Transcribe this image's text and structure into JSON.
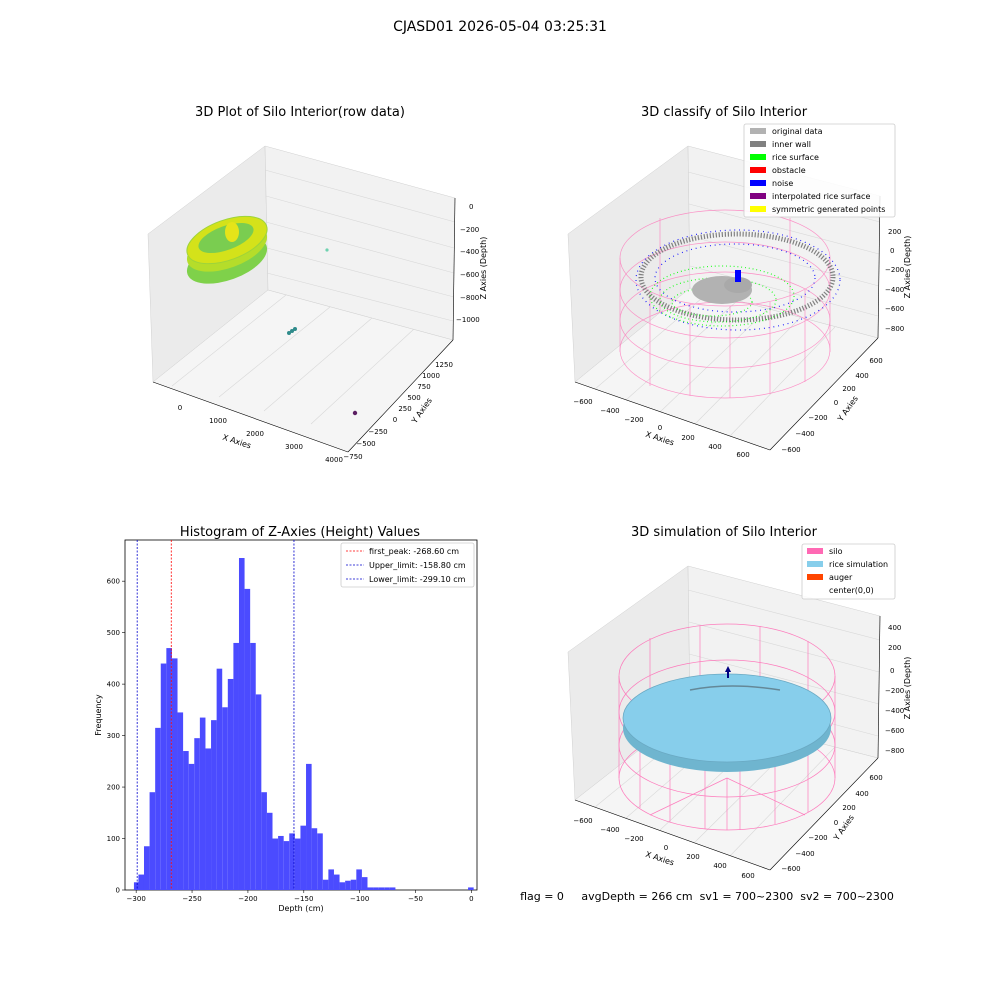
{
  "figure": {
    "suptitle": "CJASD01 2026-05-04 03:25:31",
    "status_text": "flag = 0     avgDepth = 266 cm  sv1 = 700~2300  sv2 = 700~2300"
  },
  "colors": {
    "pane": "#f2f2f2",
    "grid": "#d8d8d8",
    "hist_bar": "#4b4bff",
    "first_peak_line": "#ff0000",
    "limit_line": "#0000cc",
    "original_data": "#b2b2b2",
    "inner_wall": "#808080",
    "rice_surface": "#00ff00",
    "obstacle": "#ff0000",
    "noise": "#0000ff",
    "interpolated_rice_surface": "#800080",
    "symmetric_points": "#ffff00",
    "silo": "#ff69b4",
    "rice_simulation": "#87ceeb",
    "auger": "#ff4500"
  },
  "panels": {
    "raw": {
      "title": "3D Plot of Silo Interior(row data)",
      "xlabel": "X Axies",
      "ylabel": "Y Axies",
      "zlabel": "Z Axies (Depth)",
      "x_ticks": [
        "0",
        "1000",
        "2000",
        "3000",
        "4000"
      ],
      "y_ticks": [
        "1250",
        "1000",
        "750",
        "500",
        "250",
        "0",
        "−250",
        "−500",
        "−750"
      ],
      "z_ticks": [
        "0",
        "−200",
        "−400",
        "−600",
        "−800",
        "−1000"
      ]
    },
    "classify": {
      "title": "3D classify of Silo Interior",
      "xlabel": "X Axies",
      "ylabel": "Y Axies",
      "zlabel": "Z Axies (Depth)",
      "x_ticks": [
        "−600",
        "−400",
        "−200",
        "0",
        "200",
        "400",
        "600"
      ],
      "y_ticks": [
        "600",
        "400",
        "200",
        "0",
        "−200",
        "−400",
        "−600"
      ],
      "z_ticks": [
        "200",
        "0",
        "−200",
        "−400",
        "−600",
        "−800"
      ],
      "legend": [
        {
          "label": "original data",
          "color": "#b2b2b2"
        },
        {
          "label": "inner wall",
          "color": "#808080"
        },
        {
          "label": "rice surface",
          "color": "#00ff00"
        },
        {
          "label": "obstacle",
          "color": "#ff0000"
        },
        {
          "label": "noise",
          "color": "#0000ff"
        },
        {
          "label": "interpolated rice surface",
          "color": "#800080"
        },
        {
          "label": "symmetric generated points",
          "color": "#ffff00"
        }
      ]
    },
    "simulation": {
      "title": "3D simulation of Silo Interior",
      "xlabel": "X Axies",
      "ylabel": "Y Axies",
      "zlabel": "Z Axies (Depth)",
      "x_ticks": [
        "−600",
        "−400",
        "−200",
        "0",
        "200",
        "400",
        "600"
      ],
      "y_ticks": [
        "600",
        "400",
        "200",
        "0",
        "−200",
        "−400",
        "−600"
      ],
      "z_ticks": [
        "400",
        "200",
        "0",
        "−200",
        "−400",
        "−600",
        "−800"
      ],
      "legend": [
        {
          "label": "silo",
          "color": "#ff69b4"
        },
        {
          "label": "rice simulation",
          "color": "#87ceeb"
        },
        {
          "label": "auger",
          "color": "#ff4500"
        },
        {
          "label": "center(0,0)",
          "color": "#ffffff"
        }
      ]
    }
  },
  "chart_data": {
    "type": "bar",
    "title": "Histogram of Z-Axies (Height) Values",
    "xlabel": "Depth (cm)",
    "ylabel": "Frequency",
    "xlim": [
      -310,
      5
    ],
    "ylim": [
      0,
      680
    ],
    "x_ticks": [
      -300,
      -250,
      -200,
      -150,
      -100,
      -50,
      0
    ],
    "y_ticks": [
      0,
      100,
      200,
      300,
      400,
      500,
      600
    ],
    "bin_width": 5,
    "bins": [
      {
        "x": -302,
        "y": 15
      },
      {
        "x": -298,
        "y": 30
      },
      {
        "x": -293,
        "y": 85
      },
      {
        "x": -288,
        "y": 190
      },
      {
        "x": -283,
        "y": 315
      },
      {
        "x": -278,
        "y": 440
      },
      {
        "x": -273,
        "y": 470
      },
      {
        "x": -268,
        "y": 450
      },
      {
        "x": -263,
        "y": 345
      },
      {
        "x": -258,
        "y": 270
      },
      {
        "x": -253,
        "y": 245
      },
      {
        "x": -248,
        "y": 295
      },
      {
        "x": -243,
        "y": 335
      },
      {
        "x": -238,
        "y": 275
      },
      {
        "x": -233,
        "y": 330
      },
      {
        "x": -228,
        "y": 430
      },
      {
        "x": -223,
        "y": 355
      },
      {
        "x": -218,
        "y": 410
      },
      {
        "x": -213,
        "y": 480
      },
      {
        "x": -208,
        "y": 645
      },
      {
        "x": -203,
        "y": 585
      },
      {
        "x": -198,
        "y": 480
      },
      {
        "x": -193,
        "y": 380
      },
      {
        "x": -188,
        "y": 190
      },
      {
        "x": -183,
        "y": 150
      },
      {
        "x": -178,
        "y": 100
      },
      {
        "x": -173,
        "y": 105
      },
      {
        "x": -168,
        "y": 95
      },
      {
        "x": -163,
        "y": 110
      },
      {
        "x": -158,
        "y": 100
      },
      {
        "x": -153,
        "y": 125
      },
      {
        "x": -148,
        "y": 245
      },
      {
        "x": -143,
        "y": 120
      },
      {
        "x": -138,
        "y": 110
      },
      {
        "x": -133,
        "y": 20
      },
      {
        "x": -128,
        "y": 40
      },
      {
        "x": -123,
        "y": 30
      },
      {
        "x": -118,
        "y": 15
      },
      {
        "x": -113,
        "y": 18
      },
      {
        "x": -108,
        "y": 20
      },
      {
        "x": -103,
        "y": 40
      },
      {
        "x": -98,
        "y": 25
      },
      {
        "x": -93,
        "y": 5
      },
      {
        "x": -88,
        "y": 5
      },
      {
        "x": -83,
        "y": 5
      },
      {
        "x": -78,
        "y": 5
      },
      {
        "x": -73,
        "y": 5
      },
      {
        "x": -3,
        "y": 5
      }
    ],
    "vlines": [
      {
        "label": "first_peak: -268.60 cm",
        "x": -268.6,
        "color": "#ff0000"
      },
      {
        "label": "Upper_limit: -158.80 cm",
        "x": -158.8,
        "color": "#0000cc"
      },
      {
        "label": "Lower_limit: -299.10 cm",
        "x": -299.1,
        "color": "#0000cc"
      }
    ],
    "legend_position": "top-right"
  }
}
